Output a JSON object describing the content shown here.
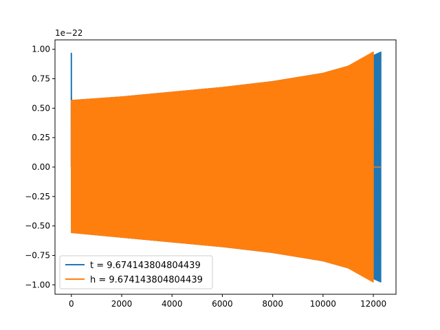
{
  "chart_data": {
    "type": "line",
    "title": "",
    "xlabel": "",
    "ylabel": "",
    "y_offset_label": "1e−22",
    "xlim": [
      -650,
      12900
    ],
    "ylim": [
      -1.08,
      1.08
    ],
    "x_ticks": [
      0,
      2000,
      4000,
      6000,
      8000,
      10000,
      12000
    ],
    "x_tick_labels": [
      "0",
      "2000",
      "4000",
      "6000",
      "8000",
      "10000",
      "12000"
    ],
    "y_ticks": [
      1.0,
      0.75,
      0.5,
      0.25,
      0.0,
      -0.25,
      -0.5,
      -0.75,
      -1.0
    ],
    "y_tick_labels": [
      "1.00",
      "0.75",
      "0.50",
      "0.25",
      "0.00",
      "−0.25",
      "−0.50",
      "−0.75",
      "−1.00"
    ],
    "grid": false,
    "legend_position": "lower-left",
    "series": [
      {
        "name": "t = 9.674143804804439",
        "color": "#1f77b4",
        "description_points": {
          "x": [
            0,
            10,
            20,
            2000,
            4000,
            6000,
            8000,
            10000,
            11000,
            12000,
            12300
          ],
          "upper": [
            0.97,
            0.57,
            0.57,
            0.6,
            0.64,
            0.68,
            0.73,
            0.8,
            0.86,
            0.95,
            0.98
          ],
          "lower": [
            -0.56,
            -0.56,
            -0.56,
            -0.6,
            -0.64,
            -0.68,
            -0.73,
            -0.8,
            -0.86,
            -0.95,
            -0.98
          ]
        }
      },
      {
        "name": "h = 9.674143804804439",
        "color": "#ff7f0e",
        "description_points": {
          "x": [
            0,
            2000,
            4000,
            6000,
            8000,
            10000,
            11000,
            12000,
            12300
          ],
          "upper": [
            0.57,
            0.6,
            0.64,
            0.68,
            0.73,
            0.8,
            0.86,
            0.98,
            0.0
          ],
          "lower": [
            -0.56,
            -0.6,
            -0.64,
            -0.68,
            -0.73,
            -0.8,
            -0.86,
            -0.98,
            0.0
          ]
        }
      }
    ],
    "legend": {
      "entries": [
        "t = 9.674143804804439",
        "h = 9.674143804804439"
      ]
    }
  }
}
